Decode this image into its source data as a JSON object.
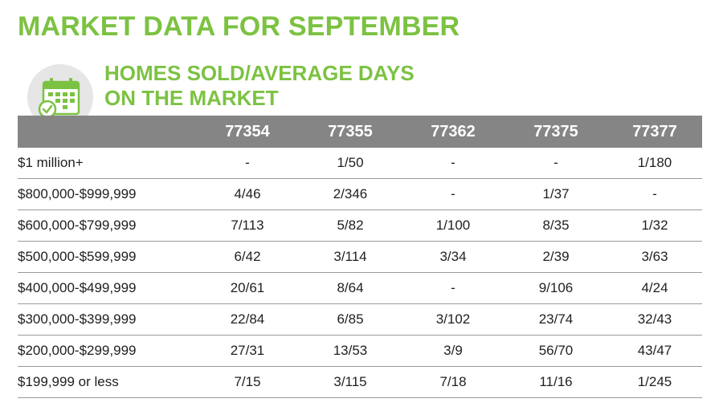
{
  "title": "MARKET DATA FOR SEPTEMBER",
  "subtitle": {
    "line1": "HOMES SOLD/AVERAGE DAYS",
    "line2": "ON THE MARKET"
  },
  "icon": "calendar-check-icon",
  "colors": {
    "accent": "#7cc242",
    "header_bg": "#858585",
    "icon_bg": "#e6e6e6"
  },
  "table": {
    "columns": [
      "",
      "77354",
      "77355",
      "77362",
      "77375",
      "77377"
    ],
    "rows": [
      [
        "$1 million+",
        "-",
        "1/50",
        "-",
        "-",
        "1/180"
      ],
      [
        "$800,000-$999,999",
        "4/46",
        "2/346",
        "-",
        "1/37",
        "-"
      ],
      [
        "$600,000-$799,999",
        "7/113",
        "5/82",
        "1/100",
        "8/35",
        "1/32"
      ],
      [
        "$500,000-$599,999",
        "6/42",
        "3/114",
        "3/34",
        "2/39",
        "3/63"
      ],
      [
        "$400,000-$499,999",
        "20/61",
        "8/64",
        "-",
        "9/106",
        "4/24"
      ],
      [
        "$300,000-$399,999",
        "22/84",
        "6/85",
        "3/102",
        "23/74",
        "32/43"
      ],
      [
        "$200,000-$299,999",
        "27/31",
        "13/53",
        "3/9",
        "56/70",
        "43/47"
      ],
      [
        "$199,999 or less",
        "7/15",
        "3/115",
        "7/18",
        "11/16",
        "1/245"
      ]
    ]
  }
}
